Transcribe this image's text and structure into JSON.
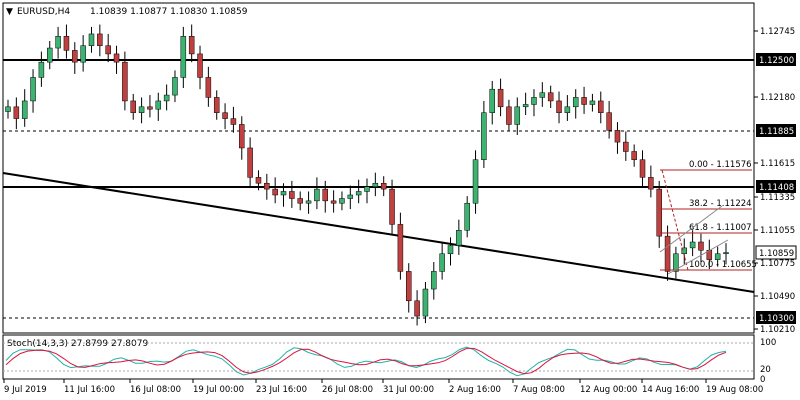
{
  "window": {
    "collapse_glyph": "▼",
    "symbol_title": "EURUSD,H4",
    "ohlc": "1.10839 1.10877 1.10830 1.10859"
  },
  "price_axis": {
    "ticks": [
      "1.12745",
      "1.12180",
      "1.11615",
      "1.11335",
      "1.11055",
      "1.10775",
      "1.10490",
      "1.10210"
    ],
    "levels": [
      "1.12500",
      "1.11885",
      "1.11408",
      "1.10300"
    ],
    "current_price": "1.10859"
  },
  "time_axis": {
    "labels": [
      "9 Jul 2019",
      "11 Jul 16:00",
      "16 Jul 08:00",
      "19 Jul 00:00",
      "23 Jul 16:00",
      "26 Jul 08:00",
      "31 Jul 00:00",
      "2 Aug 16:00",
      "7 Aug 08:00",
      "12 Aug 00:00",
      "14 Aug 16:00",
      "19 Aug 08:00"
    ]
  },
  "fibonacci": {
    "levels": [
      {
        "label": "0.00 - 1.11576",
        "ratio": 0.0
      },
      {
        "label": "38.2 - 1.11224",
        "ratio": 0.382
      },
      {
        "label": "61.8 - 1.11007",
        "ratio": 0.618
      },
      {
        "label": "100.0 - 1.10655",
        "ratio": 1.0
      }
    ]
  },
  "stochastic": {
    "title": "Stoch(14,3,3) 27.8799 27.8079",
    "scale_top": "100",
    "scale_bottom": "0",
    "level_high": "80",
    "level_low": "20"
  },
  "colors": {
    "bull": "#3cb371",
    "bear": "#c04040",
    "main_line": "#20b2aa",
    "signal_line": "#dc143c",
    "fib": "#b22222"
  },
  "chart_data": {
    "type": "candlestick",
    "symbol": "EURUSD",
    "timeframe": "H4",
    "ylim": [
      1.1016,
      1.1294
    ],
    "horizontal_levels": [
      1.125,
      1.11885,
      1.11408,
      1.103
    ],
    "trendline": {
      "start": 1.1155,
      "end": 1.1065
    },
    "close_path": [
      1.121,
      1.12,
      1.1215,
      1.1235,
      1.1248,
      1.126,
      1.127,
      1.1258,
      1.1248,
      1.1262,
      1.1272,
      1.1262,
      1.1255,
      1.1248,
      1.1215,
      1.1205,
      1.121,
      1.1208,
      1.1215,
      1.122,
      1.1235,
      1.127,
      1.1255,
      1.1235,
      1.1218,
      1.1205,
      1.12,
      1.1195,
      1.1175,
      1.115,
      1.1145,
      1.114,
      1.1135,
      1.1138,
      1.1132,
      1.1128,
      1.113,
      1.114,
      1.113,
      1.1128,
      1.1132,
      1.1135,
      1.1138,
      1.1142,
      1.1145,
      1.114,
      1.111,
      1.107,
      1.1045,
      1.1032,
      1.1055,
      1.107,
      1.1085,
      1.1092,
      1.1105,
      1.1128,
      1.1165,
      1.1205,
      1.1225,
      1.121,
      1.1195,
      1.121,
      1.1212,
      1.1218,
      1.1222,
      1.1215,
      1.1205,
      1.121,
      1.1218,
      1.1212,
      1.1215,
      1.1205,
      1.119,
      1.118,
      1.1172,
      1.1165,
      1.115,
      1.114,
      1.11,
      1.107,
      1.1085,
      1.109,
      1.1095,
      1.1088,
      1.108,
      1.1085,
      1.1086
    ]
  }
}
